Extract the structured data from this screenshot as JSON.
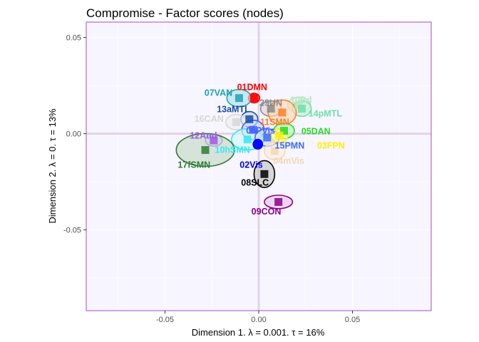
{
  "chart_data": {
    "type": "scatter",
    "title": "Compromise - Factor scores (nodes)",
    "xlabel": "Dimension 1.   λ = 0.001.  τ = 16%",
    "ylabel": "Dimension 2.   λ = 0.  τ = 13%",
    "xlim": [
      -0.092,
      0.092
    ],
    "ylim": [
      -0.092,
      0.058
    ],
    "xticks": [
      -0.05,
      0.0,
      0.05
    ],
    "yticks": [
      -0.05,
      0.0,
      0.05
    ],
    "xtick_labels": [
      "-0.05",
      "0.00",
      "0.05"
    ],
    "ytick_labels": [
      "-0.05",
      "0.00",
      "0.05"
    ],
    "grid": true,
    "panel_background": "#f7f5ff",
    "panel_border": "#a64ac9",
    "zero_line_color": "#e1d3ea",
    "points": [
      {
        "label": "01DMN",
        "x": -0.0025,
        "y": 0.0185,
        "rx": 0.003,
        "ry": 0.0025,
        "color": "#ff0000",
        "fill": "#ff0000",
        "lx": -0.0035,
        "ly": 0.0242
      },
      {
        "label": "07VAN",
        "x": -0.0105,
        "y": 0.0185,
        "rx": 0.0065,
        "ry": 0.0045,
        "color": "#1ba3b5",
        "fill": "#b3dfe6",
        "lx": -0.0215,
        "ly": 0.0212
      },
      {
        "label": "13aMTL",
        "x": -0.005,
        "y": 0.0075,
        "rx": 0.0045,
        "ry": 0.004,
        "color": "#174da3",
        "fill": "#c9d6ec",
        "lx": -0.0135,
        "ly": 0.0127
      },
      {
        "label": "29UN",
        "x": 0.0065,
        "y": 0.013,
        "rx": 0.0055,
        "ry": 0.004,
        "color": "#8a8a8a",
        "fill": "#d9d9d9",
        "lx": 0.0065,
        "ly": 0.016
      },
      {
        "label": "10Bd",
        "x": 0.0215,
        "y": 0.015,
        "rx": 0.006,
        "ry": 0.004,
        "color": "#b9e5c5",
        "fill": "#e0f3e4",
        "lx": 0.0225,
        "ly": 0.0175
      },
      {
        "label": "14pMTL",
        "x": 0.023,
        "y": 0.013,
        "rx": 0.005,
        "ry": 0.004,
        "color": "#6de0a8",
        "fill": "#c8f1dc",
        "lx": 0.0355,
        "ly": 0.0104
      },
      {
        "label": "16CAN",
        "x": -0.012,
        "y": 0.006,
        "rx": 0.0055,
        "ry": 0.004,
        "color": "#d7d7d7",
        "fill": "#f0f0f0",
        "lx": -0.0265,
        "ly": 0.0077
      },
      {
        "label": "11SMN",
        "x": 0.0125,
        "y": 0.011,
        "rx": 0.0075,
        "ry": 0.0065,
        "color": "#ff7f24",
        "fill": "#ffd6b3",
        "lx": 0.0085,
        "ly": 0.006
      },
      {
        "label": "05DAN",
        "x": 0.0135,
        "y": 0.0015,
        "rx": 0.0055,
        "ry": 0.004,
        "color": "#22dd22",
        "fill": "#bff5bf",
        "lx": 0.0305,
        "ly": 0.0012
      },
      {
        "label": "06PVis",
        "x": -0.003,
        "y": 0.002,
        "rx": 0.006,
        "ry": 0.005,
        "color": "#4060ff",
        "fill": "#d0d8ff",
        "lx": 0.001,
        "ly": 0.0015
      },
      {
        "label": "12Aud",
        "x": -0.024,
        "y": -0.0035,
        "rx": 0.0045,
        "ry": 0.003,
        "color": "#a057e8",
        "fill": "#ded0f5",
        "lx": -0.0295,
        "ly": -0.001
      },
      {
        "label": "10hSMN",
        "x": -0.006,
        "y": -0.003,
        "rx": 0.0085,
        "ry": 0.0055,
        "color": "#35e8f2",
        "fill": "#d3f8fb",
        "lx": -0.014,
        "ly": -0.0085
      },
      {
        "label": "17fSMN",
        "x": -0.0285,
        "y": -0.0085,
        "rx": 0.0155,
        "ry": 0.0085,
        "color": "#2f7d32",
        "fill": "#c5d9c6",
        "lx": -0.0345,
        "ly": -0.0163
      },
      {
        "label": "15PMN",
        "x": 0.0045,
        "y": -0.002,
        "rx": 0.0065,
        "ry": 0.0045,
        "color": "#3b6bff",
        "fill": "#cfdaff",
        "lx": 0.0165,
        "ly": -0.0063
      },
      {
        "label": "03FPN",
        "x": 0.011,
        "y": -0.001,
        "rx": 0.0045,
        "ry": 0.0035,
        "color": "#ffee00",
        "fill": "#fffbb3",
        "lx": 0.0385,
        "ly": -0.0063
      },
      {
        "label": "04mVis",
        "x": 0.0085,
        "y": -0.009,
        "rx": 0.0055,
        "ry": 0.0045,
        "color": "#f6d6b3",
        "fill": "#fdeedd",
        "lx": 0.016,
        "ly": -0.0142
      },
      {
        "label": "02Vis",
        "x": -0.0005,
        "y": -0.0055,
        "rx": 0.0025,
        "ry": 0.0025,
        "color": "#0000ff",
        "fill": "#0000ff",
        "lx": -0.004,
        "ly": -0.0163
      },
      {
        "label": "08SLC",
        "x": 0.003,
        "y": -0.021,
        "rx": 0.0055,
        "ry": 0.007,
        "color": "#000000",
        "fill": "#c4c4c4",
        "lx": -0.002,
        "ly": -0.0255
      },
      {
        "label": "09CON",
        "x": 0.0105,
        "y": -0.0355,
        "rx": 0.0075,
        "ry": 0.0035,
        "color": "#8b008b",
        "fill": "#e5c5e5",
        "lx": 0.004,
        "ly": -0.0405
      }
    ]
  }
}
